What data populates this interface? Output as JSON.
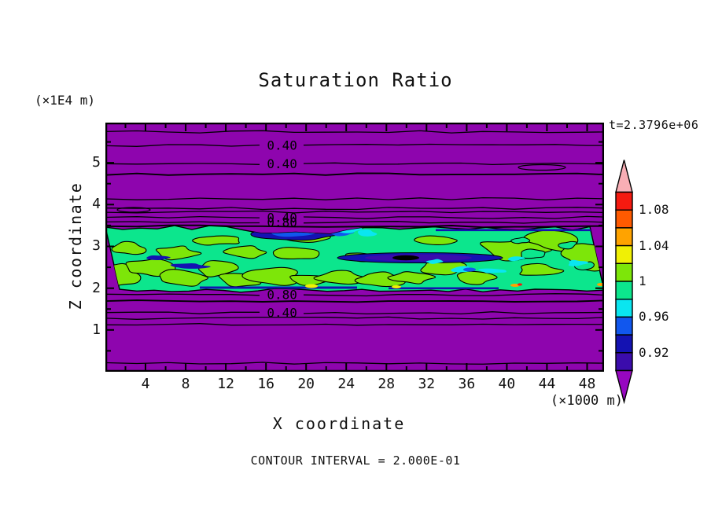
{
  "title": "Saturation Ratio",
  "time_label": "t=2.3796e+06",
  "footer": "CONTOUR INTERVAL = 2.000E-01",
  "axes": {
    "y_label": "Z coordinate",
    "y_unit": "(×1E4 m)",
    "x_label": "X coordinate",
    "x_unit": "(×1000 m)"
  },
  "chart_data": {
    "type": "heatmap",
    "variant": "filled contour plot of a 2-D field",
    "title": "Saturation Ratio",
    "xlabel": "X coordinate",
    "xunit": "(×1000 m)",
    "ylabel": "Z coordinate",
    "yunit": "(×1E4 m)",
    "xlim": [
      0,
      49.7
    ],
    "ylim": [
      0,
      6
    ],
    "x_ticks": [
      4,
      8,
      12,
      16,
      20,
      24,
      28,
      32,
      36,
      40,
      44,
      48
    ],
    "x_minor_step": 2,
    "y_ticks": [
      1,
      2,
      3,
      4,
      5
    ],
    "y_minor_step": 0.5,
    "time_annotation": "t=2.3796e+06",
    "contour_interval": 0.2,
    "contour_interval_label": "CONTOUR INTERVAL = 2.000E-01",
    "background_value_color": "#8E05AE",
    "colorbar": {
      "tick_labels": [
        "1.08",
        "1.04",
        "1",
        "0.96",
        "0.92"
      ],
      "top_value": 1.1,
      "bottom_value": 0.9,
      "level_step": 0.02,
      "segment_colors_top_to_bottom": [
        "#F51A10",
        "#FF5A00",
        "#FFA300",
        "#F0F005",
        "#7DE609",
        "#0CE68D",
        "#0AE6F0",
        "#1157EE",
        "#1412B2",
        "#3B0CAC"
      ],
      "over_color": "#F8AEB5",
      "under_color": "#9707C0"
    },
    "band": {
      "description": "mixed saturation band (values ~0.92-1.06) embedded in low-saturation purple background (<0.90); patches of 0.90-0.96 (blues) and ~1.00-1.02 (yellow-green) inside, trace 1.02-1.10 specks at band base",
      "top_z": 3.44,
      "bottom_z": 1.95,
      "base_color": "#0CE68D",
      "patch_colors": {
        "greenyellow": "#7DE609",
        "cyan": "#0AE6F0",
        "blue": "#1157EE",
        "navy": "#1412B2",
        "indigo": "#3B0CAC",
        "black": "#000000",
        "yellow": "#F0F005",
        "orange": "#FFA300",
        "red": "#F51A10"
      }
    },
    "contour_line_labels": [
      {
        "text": "0.40",
        "x": 17.6,
        "z": 5.42
      },
      {
        "text": "0.40",
        "x": 17.6,
        "z": 4.97
      },
      {
        "text": "0.40",
        "x": 17.6,
        "z": 3.69
      },
      {
        "text": "0.80",
        "x": 17.6,
        "z": 3.57
      },
      {
        "text": "0.80",
        "x": 17.6,
        "z": 1.84
      },
      {
        "text": "0.40",
        "x": 17.6,
        "z": 1.41
      }
    ],
    "contour_lines_z": [
      {
        "z": 5.74
      },
      {
        "z": 5.42,
        "gap": true
      },
      {
        "z": 4.97,
        "gap": true
      },
      {
        "z": 4.72
      },
      {
        "z": 4.14
      },
      {
        "z": 3.91
      },
      {
        "z": 3.82
      },
      {
        "z": 3.69,
        "gap": true
      },
      {
        "z": 3.57,
        "gap": true
      },
      {
        "z": 3.48
      },
      {
        "z": 1.84,
        "gap": true
      },
      {
        "z": 1.69
      },
      {
        "z": 1.41,
        "gap": true
      },
      {
        "z": 1.28
      },
      {
        "z": 1.13
      },
      {
        "z": 0.21
      }
    ]
  }
}
